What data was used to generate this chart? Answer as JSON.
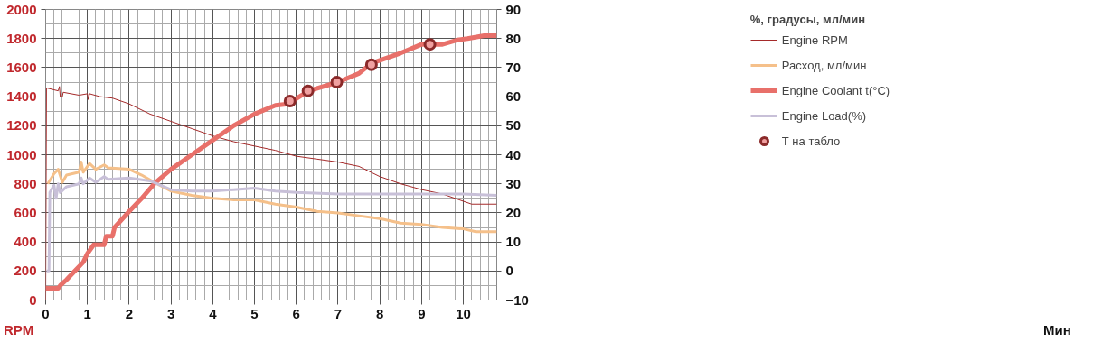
{
  "chart_data": {
    "type": "line",
    "ylabel": "RPM",
    "annotations": [
      "%, градусы, мл/мин",
      "Мин"
    ],
    "xlim": [
      0,
      10.8
    ],
    "xticks": [
      0,
      1,
      2,
      3,
      4,
      5,
      6,
      7,
      8,
      9,
      10
    ],
    "ylim": [
      0,
      2000
    ],
    "yticks": [
      0,
      200,
      400,
      600,
      800,
      1000,
      1200,
      1400,
      1600,
      1800,
      2000
    ],
    "y2lim": [
      -10,
      90
    ],
    "y2ticks": [
      -10,
      0,
      10,
      20,
      30,
      40,
      50,
      60,
      70,
      80,
      90
    ],
    "grid": true,
    "legend": "right",
    "marker": "none",
    "line_style": "solid",
    "series": [
      {
        "name": "Engine RPM",
        "color": "#a52a2a",
        "x": [
          0,
          0.02,
          0.3,
          0.33,
          0.35,
          0.4,
          0.42,
          0.8,
          1.0,
          1.02,
          1.05,
          1.3,
          1.6,
          2.0,
          2.5,
          3.0,
          3.5,
          4.0,
          4.5,
          5.0,
          5.5,
          6.0,
          6.5,
          7.0,
          7.5,
          8.0,
          8.5,
          9.0,
          9.5,
          10.0,
          10.2,
          10.8
        ],
        "values": [
          0,
          1460,
          1440,
          1470,
          1400,
          1400,
          1430,
          1410,
          1420,
          1380,
          1420,
          1400,
          1390,
          1350,
          1280,
          1230,
          1180,
          1130,
          1090,
          1060,
          1030,
          990,
          970,
          950,
          920,
          850,
          800,
          760,
          730,
          680,
          660,
          660
        ]
      },
      {
        "name": "Расход, мл/мин",
        "color": "#f5c08a",
        "axis": "y2",
        "x": [
          0.05,
          0.2,
          0.3,
          0.4,
          0.5,
          0.8,
          0.85,
          0.9,
          1.05,
          1.2,
          1.4,
          1.5,
          2.0,
          2.3,
          2.6,
          3.0,
          3.5,
          4.0,
          4.5,
          5.0,
          5.5,
          6.0,
          6.5,
          7.0,
          7.5,
          8.0,
          8.5,
          9.0,
          9.5,
          10.0,
          10.3,
          10.8
        ],
        "values": [
          30,
          33.5,
          35,
          30.5,
          33,
          34,
          37.5,
          34,
          37,
          35,
          36.5,
          35.5,
          35,
          33,
          30.5,
          27.5,
          26,
          25,
          24.5,
          24.5,
          23,
          22,
          20.5,
          20,
          19,
          18,
          16.5,
          16,
          15,
          14.5,
          13.5,
          13.5
        ]
      },
      {
        "name": "Engine Coolant t(°C)",
        "color": "#e8706a",
        "axis": "y2",
        "x": [
          0,
          0.3,
          0.35,
          0.5,
          0.7,
          0.9,
          1.0,
          1.15,
          1.4,
          1.45,
          1.6,
          1.65,
          2.0,
          2.3,
          2.6,
          2.8,
          3.0,
          3.5,
          4.0,
          4.5,
          5.0,
          5.5,
          5.8,
          6.3,
          7.0,
          7.5,
          7.8,
          8.5,
          9.0,
          9.5,
          9.85,
          10.1,
          10.5,
          10.8
        ],
        "values": [
          -6,
          -6,
          -5,
          -3,
          0,
          3,
          6,
          9,
          9,
          12,
          12,
          15,
          20.5,
          25,
          30,
          32.5,
          35,
          40,
          45,
          50,
          54,
          57,
          57.5,
          62,
          65,
          68,
          71.5,
          75,
          78,
          78,
          79.5,
          80,
          81,
          81
        ]
      },
      {
        "name": "Engine Load(%)",
        "color": "#c8c0d8",
        "axis": "y2",
        "x": [
          0.02,
          0.08,
          0.1,
          0.2,
          0.25,
          0.3,
          0.35,
          0.5,
          0.8,
          0.85,
          0.9,
          1.05,
          1.2,
          1.4,
          1.5,
          2.0,
          2.5,
          3.0,
          3.5,
          4.0,
          4.5,
          5.0,
          5.5,
          6.0,
          7.0,
          8.0,
          9.0,
          10.0,
          10.8
        ],
        "values": [
          0,
          0,
          27,
          29.5,
          25,
          30,
          27,
          29,
          30,
          32,
          30,
          32,
          30.5,
          32.5,
          31.5,
          32,
          31,
          28,
          27.5,
          27.5,
          28,
          28.5,
          27.5,
          27,
          26.5,
          26.5,
          26.5,
          26.5,
          26
        ]
      },
      {
        "name": "Т на табло",
        "type": "scatter",
        "marker": "circle",
        "color": "#8b2a2a",
        "axis": "y2",
        "x": [
          5.85,
          6.28,
          6.97,
          7.8,
          9.2
        ],
        "values": [
          58.5,
          62,
          65,
          71,
          78
        ]
      }
    ]
  }
}
